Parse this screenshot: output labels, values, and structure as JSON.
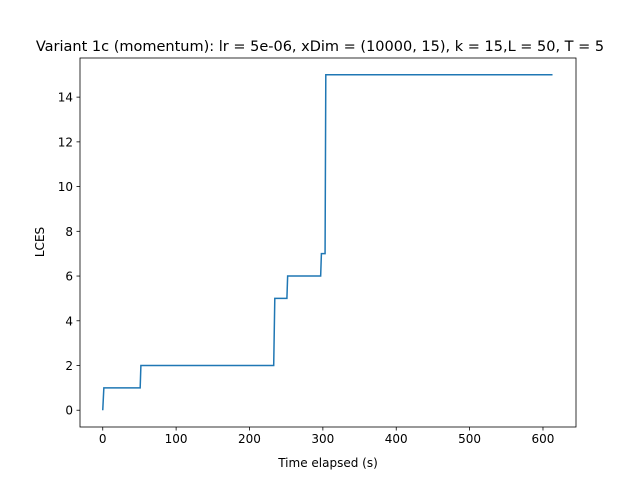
{
  "chart_data": {
    "type": "line",
    "title": "Variant 1c (momentum): lr = 5e-06, xDim = (10000, 15), k = 15,L = 50, T = 5",
    "xlabel": "Time elapsed (s)",
    "ylabel": "LCES",
    "xlim": [
      -31,
      645
    ],
    "ylim": [
      -0.75,
      15.75
    ],
    "xticks": [
      0,
      100,
      200,
      300,
      400,
      500,
      600
    ],
    "yticks": [
      0,
      2,
      4,
      6,
      8,
      10,
      12,
      14
    ],
    "grid": false,
    "legend": "none",
    "series": [
      {
        "color": "#1f77b4",
        "x": [
          0,
          1.5,
          51,
          52,
          233,
          234.5,
          251,
          252,
          297,
          298,
          301,
          301,
          303,
          304,
          613
        ],
        "y": [
          0,
          1,
          1,
          2,
          2,
          5,
          5,
          6,
          6,
          7,
          7,
          7,
          7,
          15,
          15
        ]
      }
    ]
  }
}
